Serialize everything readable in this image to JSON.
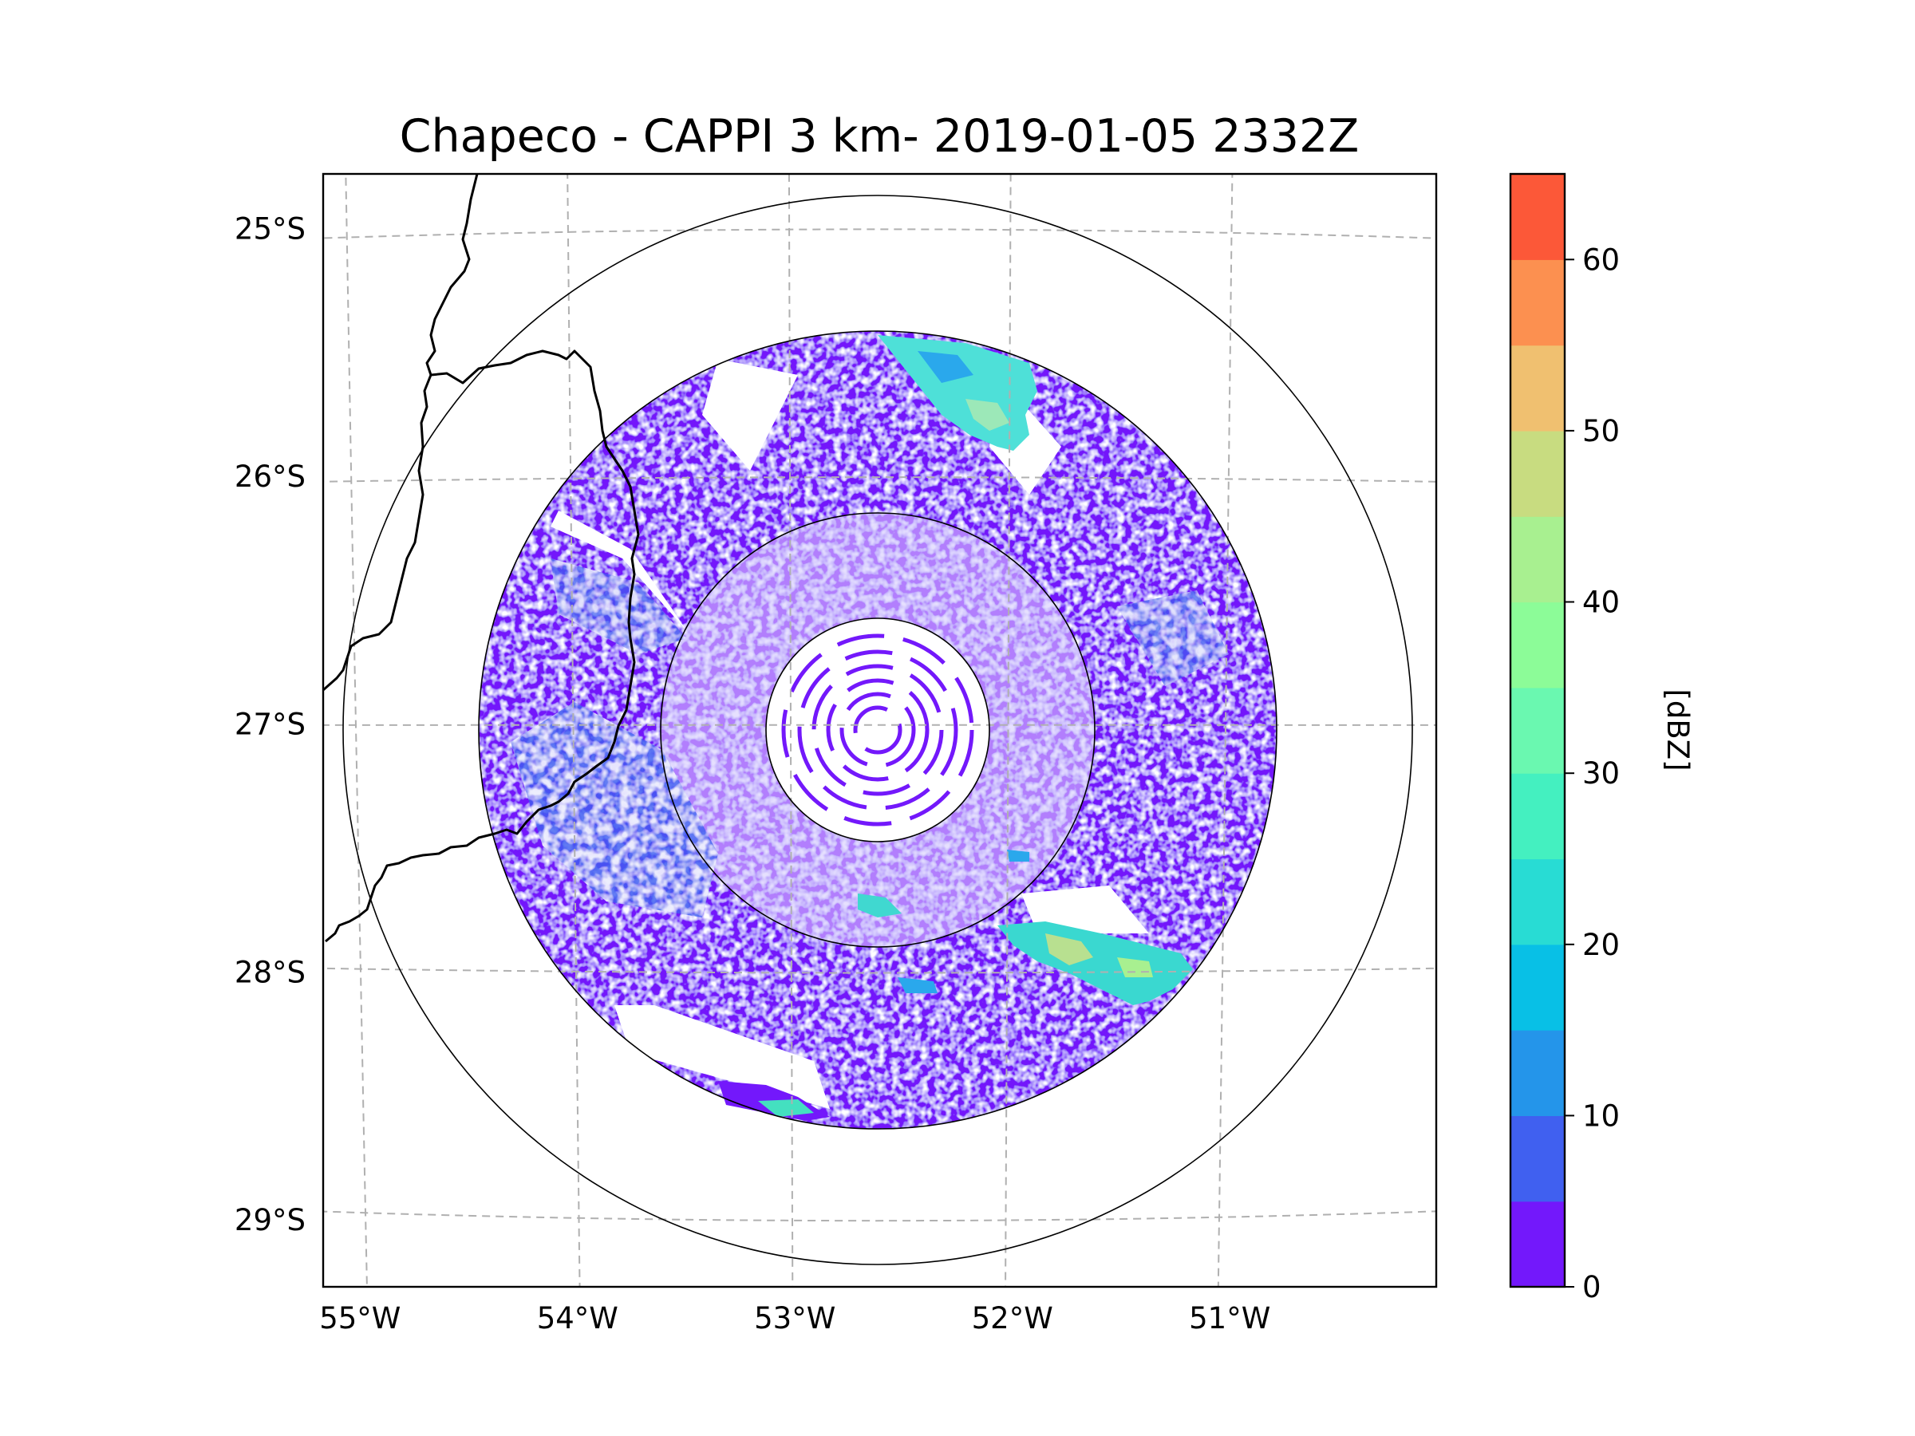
{
  "title": "Chapeco - CAPPI 3 km- 2019-01-05 2332Z",
  "map": {
    "projection": "azimuthal-equidistant",
    "radar_name": "Chapeco",
    "radar_center_lon": -52.6,
    "radar_center_lat": -27.02,
    "lon_range": [
      -55.17,
      -50.05
    ],
    "lat_range": [
      -29.27,
      -24.78
    ],
    "lon_ticks": [
      -55,
      -54,
      -53,
      -52,
      -51
    ],
    "lon_tick_labels": [
      "55°W",
      "54°W",
      "53°W",
      "52°W",
      "51°W"
    ],
    "lat_ticks": [
      -25,
      -26,
      -27,
      -28,
      -29
    ],
    "lat_tick_labels": [
      "25°S",
      "26°S",
      "27°S",
      "28°S",
      "29°S"
    ],
    "gridlines": "dashed grey",
    "range_rings_km": [
      50,
      100,
      200,
      250
    ]
  },
  "colorbar": {
    "label": "[dBZ]",
    "min": 0,
    "max": 65,
    "tick_values": [
      0,
      10,
      20,
      30,
      40,
      50,
      60
    ],
    "tick_labels": [
      "0",
      "10",
      "20",
      "30",
      "40",
      "50",
      "60"
    ],
    "levels": [
      0,
      5,
      10,
      15,
      20,
      25,
      30,
      35,
      40,
      45,
      50,
      55,
      60,
      65
    ],
    "colors": [
      "#7318fb",
      "#4060f0",
      "#2495ea",
      "#08c0e6",
      "#28dcd4",
      "#44f0c0",
      "#6af8b0",
      "#8cfc98",
      "#a8f090",
      "#c8dc80",
      "#f0c070",
      "#fc9050",
      "#fc5838",
      "#f82818"
    ]
  },
  "echo_colors": {
    "weak": "#7318fb",
    "light": "#4060f0",
    "moderate": "#08c0e6",
    "teal": "#40e0c8",
    "strong": "#b8e090"
  }
}
